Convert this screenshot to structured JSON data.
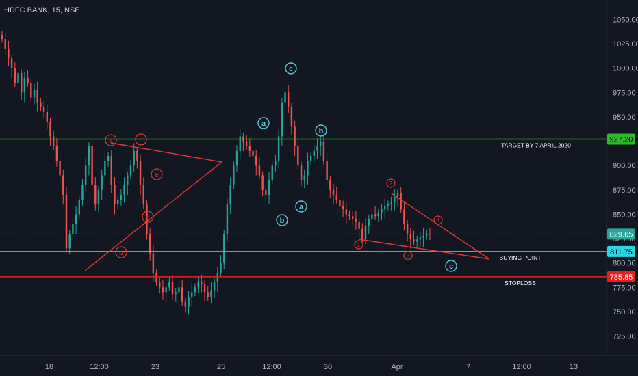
{
  "chart_data": {
    "type": "candlestick",
    "title": "HDFC BANK, 15, NSE",
    "ylim": [
      705,
      1070
    ],
    "y_ticks": [
      725,
      750,
      775,
      800,
      825,
      850,
      875,
      900,
      925,
      950,
      975,
      1000,
      1025,
      1050
    ],
    "y_tick_labels": [
      "725.00",
      "750.00",
      "775.00",
      "800.00",
      "825.00",
      "850.00",
      "875.00",
      "900.00",
      "925.00",
      "950.00",
      "975.00",
      "1000.00",
      "1025.00",
      "1050.00"
    ],
    "x_ticks": [
      "18",
      "12:00",
      "23",
      "25",
      "12:00",
      "30",
      "Apr",
      "7",
      "12:00",
      "13"
    ],
    "series": [
      {
        "values": [
          1030,
          1020,
          1010,
          1000,
          985,
          995,
          975,
          990,
          985,
          970,
          978,
          965,
          960,
          955,
          945,
          930,
          920,
          905,
          890,
          870,
          815,
          830,
          840,
          850,
          865,
          880,
          900,
          920,
          880,
          860,
          875,
          890,
          905,
          910,
          880,
          860,
          865,
          870,
          880,
          890,
          900,
          915,
          905,
          880,
          860,
          830,
          810,
          790,
          780,
          775,
          770,
          775,
          780,
          768,
          770,
          775,
          760,
          755,
          765,
          770,
          775,
          780,
          778,
          770,
          765,
          772,
          780,
          790,
          800,
          830,
          860,
          880,
          900,
          915,
          930,
          925,
          920,
          915,
          910,
          900,
          890,
          875,
          870,
          885,
          900,
          905,
          930,
          965,
          975,
          960,
          940,
          920,
          900,
          885,
          890,
          905,
          910,
          915,
          920,
          925,
          905,
          885,
          875,
          870,
          865,
          858,
          855,
          850,
          848,
          845,
          842,
          835,
          825,
          838,
          845,
          850,
          848,
          852,
          855,
          858,
          860,
          862,
          868,
          872,
          855,
          840,
          830,
          825,
          822,
          824,
          826,
          828,
          830,
          829.65
        ]
      }
    ],
    "bull_color": "#26a69a",
    "bear_color": "#ef5350",
    "horizontal_levels": [
      {
        "value": 927.2,
        "label": "927.20",
        "annotation": "TARGET BY 7 APRIL 2020",
        "color": "#2db82d",
        "text_color": "#000000"
      },
      {
        "value": 829.65,
        "label": "829.65",
        "annotation": "",
        "color": "#26a69a",
        "text_color": "#ffffff"
      },
      {
        "value": 811.75,
        "label": "811.75",
        "annotation": "BUYING POINT",
        "color": "#26d8e6",
        "text_color": "#000000"
      },
      {
        "value": 785.85,
        "label": "785.85",
        "annotation": "STOPLOSS",
        "color": "#ee1c1c",
        "text_color": "#ffffff"
      }
    ],
    "wave_labels_red": [
      "a",
      "b",
      "c",
      "d",
      "e",
      "1",
      "2",
      "3",
      "4"
    ],
    "wave_labels_cyan": [
      "a",
      "b",
      "c",
      "a",
      "b",
      "c"
    ]
  },
  "colors": {
    "background": "#131722",
    "axis_line": "#2a2e39",
    "axis_text": "#b2b5be",
    "red_wave": "#e53935",
    "cyan_wave": "#5bc8e0"
  }
}
